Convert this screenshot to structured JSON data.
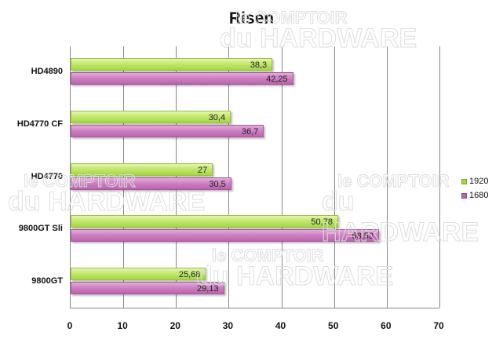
{
  "chart_data": {
    "type": "bar",
    "orientation": "horizontal",
    "title": "Risen",
    "xlabel": "",
    "ylabel": "",
    "xlim": [
      0,
      70
    ],
    "x_ticks": [
      "0",
      "10",
      "20",
      "30",
      "40",
      "50",
      "60",
      "70"
    ],
    "grid": true,
    "legend_position": "right",
    "categories": [
      "HD4890",
      "HD4770 CF",
      "HD4770",
      "9800GT Sli",
      "9800GT"
    ],
    "series": [
      {
        "name": "1920",
        "color": "#bfe66b",
        "values": [
          38.3,
          30.4,
          27,
          50.78,
          25.68
        ],
        "labels": [
          "38,3",
          "30,4",
          "27",
          "50,78",
          "25,68"
        ]
      },
      {
        "name": "1680",
        "color": "#cc7ec0",
        "values": [
          42.25,
          36.7,
          30.5,
          58.53,
          29.13
        ],
        "labels": [
          "42,25",
          "36,7",
          "30,5",
          "58,53",
          "29,13"
        ]
      }
    ]
  },
  "watermark": {
    "line1": "le COMPTOIR",
    "line2": "du HARDWARE"
  }
}
